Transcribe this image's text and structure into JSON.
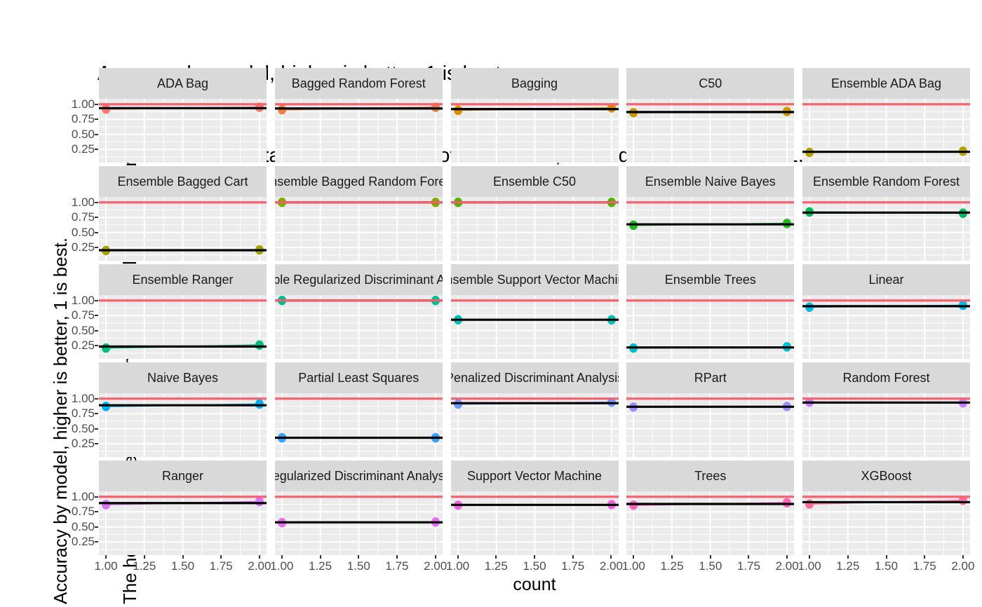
{
  "title": {
    "line1": "Accuracy by model, higher is better, 1 is best.",
    "line2": " The black horizontal line is the mean of the results, the red horizontal line is 1."
  },
  "y_axis_title": {
    "line1": "Accuracy by model, higher is better, 1 is best.",
    "line2": "The horizontal line is the mean of the results, the red line is 1."
  },
  "x_axis_title": "count",
  "chart_data": {
    "type": "scatter",
    "facet_layout": {
      "rows": 5,
      "cols": 5
    },
    "x": [
      1,
      2
    ],
    "x_ticks": [
      "1.00",
      "1.25",
      "1.50",
      "1.75",
      "2.00"
    ],
    "y_ticks": [
      "1.00",
      "0.75",
      "0.50",
      "0.25"
    ],
    "x_range": [
      0.954,
      2.046
    ],
    "y_range": [
      0.03,
      1.09
    ],
    "grid": "on",
    "reference_line": {
      "y": 1.0,
      "color": "#F8616E",
      "meaning": "red horizontal line is 1"
    },
    "mean_line_color": "#000000",
    "panel_bg": "#EBEBEB",
    "strip_bg": "#D9D9D9",
    "grid_color": "#FFFFFF",
    "facets": [
      {
        "model": "ADA Bag",
        "values": [
          0.92,
          0.95
        ],
        "mean": 0.935,
        "color": "#F8766D"
      },
      {
        "model": "Bagged Random Forest",
        "values": [
          0.91,
          0.95
        ],
        "mean": 0.93,
        "color": "#EC8139"
      },
      {
        "model": "Bagging",
        "values": [
          0.9,
          0.94
        ],
        "mean": 0.92,
        "color": "#DC8C00"
      },
      {
        "model": "C50",
        "values": [
          0.86,
          0.88
        ],
        "mean": 0.87,
        "color": "#C99800"
      },
      {
        "model": "Ensemble ADA Bag",
        "values": [
          0.2,
          0.22
        ],
        "mean": 0.21,
        "color": "#B4A100"
      },
      {
        "model": "Ensemble Bagged Cart",
        "values": [
          0.2,
          0.21
        ],
        "mean": 0.205,
        "color": "#A3A500"
      },
      {
        "model": "Ensemble Bagged Random Forest",
        "values": [
          1.0,
          1.0
        ],
        "mean": 1.0,
        "color": "#81AD00"
      },
      {
        "model": "Ensemble C50",
        "values": [
          1.0,
          1.0
        ],
        "mean": 1.0,
        "color": "#52B300"
      },
      {
        "model": "Ensemble Naive Bayes",
        "values": [
          0.62,
          0.65
        ],
        "mean": 0.635,
        "color": "#22B81F"
      },
      {
        "model": "Ensemble Random Forest",
        "values": [
          0.84,
          0.82
        ],
        "mean": 0.83,
        "color": "#00BC57"
      },
      {
        "model": "Ensemble Ranger",
        "values": [
          0.21,
          0.26
        ],
        "mean": 0.235,
        "color": "#00BF7D"
      },
      {
        "model": "Ensemble Regularized Discriminant Analysis",
        "values": [
          1.0,
          1.0
        ],
        "mean": 1.0,
        "color": "#00C19E"
      },
      {
        "model": "Ensemble Support Vector Machine",
        "values": [
          0.68,
          0.68
        ],
        "mean": 0.68,
        "color": "#00C0B7"
      },
      {
        "model": "Ensemble Trees",
        "values": [
          0.21,
          0.23
        ],
        "mean": 0.22,
        "color": "#00BDCF"
      },
      {
        "model": "Linear",
        "values": [
          0.89,
          0.92
        ],
        "mean": 0.905,
        "color": "#00B8E4"
      },
      {
        "model": "Naive Bayes",
        "values": [
          0.87,
          0.91
        ],
        "mean": 0.89,
        "color": "#00B0F6"
      },
      {
        "model": "Partial Least Squares",
        "values": [
          0.35,
          0.35
        ],
        "mean": 0.35,
        "color": "#35A2FF"
      },
      {
        "model": "Penalized Discriminant Analysis",
        "values": [
          0.91,
          0.94
        ],
        "mean": 0.925,
        "color": "#6C98FF"
      },
      {
        "model": "RPart",
        "values": [
          0.86,
          0.87
        ],
        "mean": 0.865,
        "color": "#9B8DFF"
      },
      {
        "model": "Random Forest",
        "values": [
          0.94,
          0.93
        ],
        "mean": 0.935,
        "color": "#C77CFF"
      },
      {
        "model": "Ranger",
        "values": [
          0.87,
          0.92
        ],
        "mean": 0.895,
        "color": "#D873FC"
      },
      {
        "model": "Regularized Discriminant Analysis",
        "values": [
          0.57,
          0.58
        ],
        "mean": 0.575,
        "color": "#E76BF3"
      },
      {
        "model": "Support Vector Machine",
        "values": [
          0.86,
          0.87
        ],
        "mean": 0.865,
        "color": "#F564DF"
      },
      {
        "model": "Trees",
        "values": [
          0.86,
          0.9
        ],
        "mean": 0.88,
        "color": "#FF62C1"
      },
      {
        "model": "XGBoost",
        "values": [
          0.88,
          0.94
        ],
        "mean": 0.91,
        "color": "#FF6B9B"
      }
    ]
  }
}
